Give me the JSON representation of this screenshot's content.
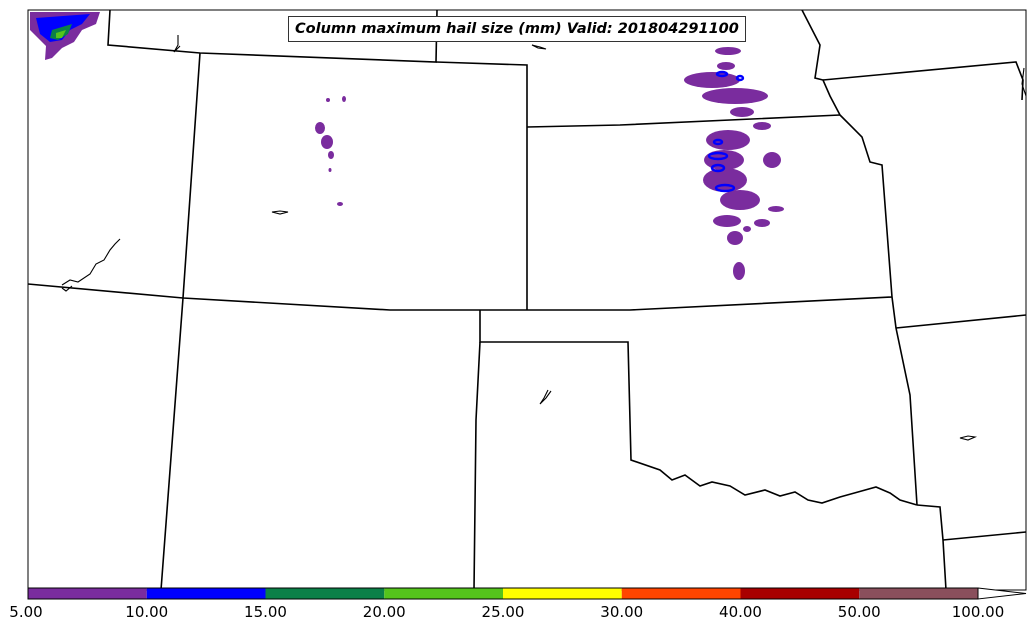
{
  "title": "Column maximum hail size (mm) Valid: 201804291100",
  "colorbar": {
    "ticks": [
      "5.00",
      "10.00",
      "15.00",
      "20.00",
      "25.00",
      "30.00",
      "40.00",
      "50.00",
      "100.00"
    ],
    "colors": [
      "#7a2c9e",
      "#0000ff",
      "#0b8048",
      "#55c41c",
      "#ffff00",
      "#ff4500",
      "#a80000",
      "#8a4f5c"
    ],
    "extend": "max"
  },
  "legend_placement": "bottom",
  "map_region": "Central Plains, United States"
}
